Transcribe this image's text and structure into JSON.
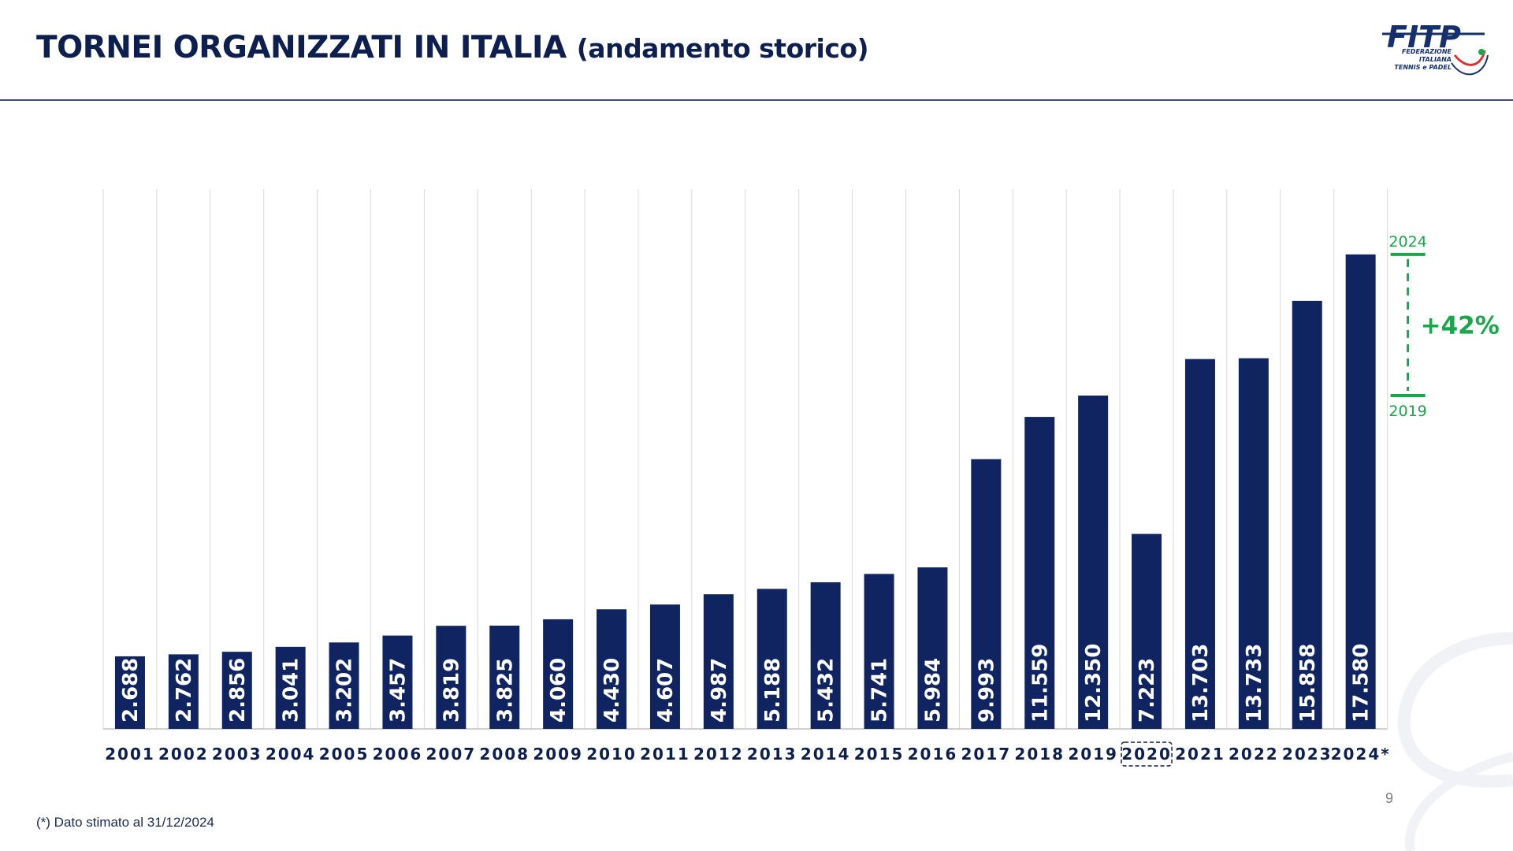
{
  "title": {
    "main": "TORNEI ORGANIZZATI IN ITALIA",
    "sub": "(andamento storico)"
  },
  "logo": {
    "text": "FITP",
    "line1": "FEDERAZIONE",
    "line2": "ITALIANA",
    "line3": "TENNIS e PADEL"
  },
  "colors": {
    "title": "#0d1f4f",
    "bar": "#0f2460",
    "accent": "#1aa64a",
    "grid": "#d9d9d9"
  },
  "chart_data": {
    "type": "bar",
    "title": "",
    "xlabel": "",
    "ylabel": "",
    "categories": [
      "2001",
      "2002",
      "2003",
      "2004",
      "2005",
      "2006",
      "2007",
      "2008",
      "2009",
      "2010",
      "2011",
      "2012",
      "2013",
      "2014",
      "2015",
      "2016",
      "2017",
      "2018",
      "2019",
      "2020",
      "2021",
      "2022",
      "2023",
      "2024*"
    ],
    "values": [
      2688,
      2762,
      2856,
      3041,
      3202,
      3457,
      3819,
      3825,
      4060,
      4430,
      4607,
      4987,
      5188,
      5432,
      5741,
      5984,
      9993,
      11559,
      12350,
      7223,
      13703,
      13733,
      15858,
      17580
    ],
    "value_labels": [
      "2.688",
      "2.762",
      "2.856",
      "3.041",
      "3.202",
      "3.457",
      "3.819",
      "3.825",
      "4.060",
      "4.430",
      "4.607",
      "4.987",
      "5.188",
      "5.432",
      "5.741",
      "5.984",
      "9.993",
      "11.559",
      "12.350",
      "7.223",
      "13.703",
      "13.733",
      "15.858",
      "17.580"
    ],
    "ylim": [
      0,
      20000
    ],
    "grid": "vertical",
    "highlighted_category": "2020",
    "annotation": {
      "top_label": "2024",
      "bottom_label": "2019",
      "growth_label": "+42%",
      "from_value": 12350,
      "to_value": 17580
    }
  },
  "footnote": "(*) Dato stimato al 31/12/2024",
  "page_number": "9"
}
